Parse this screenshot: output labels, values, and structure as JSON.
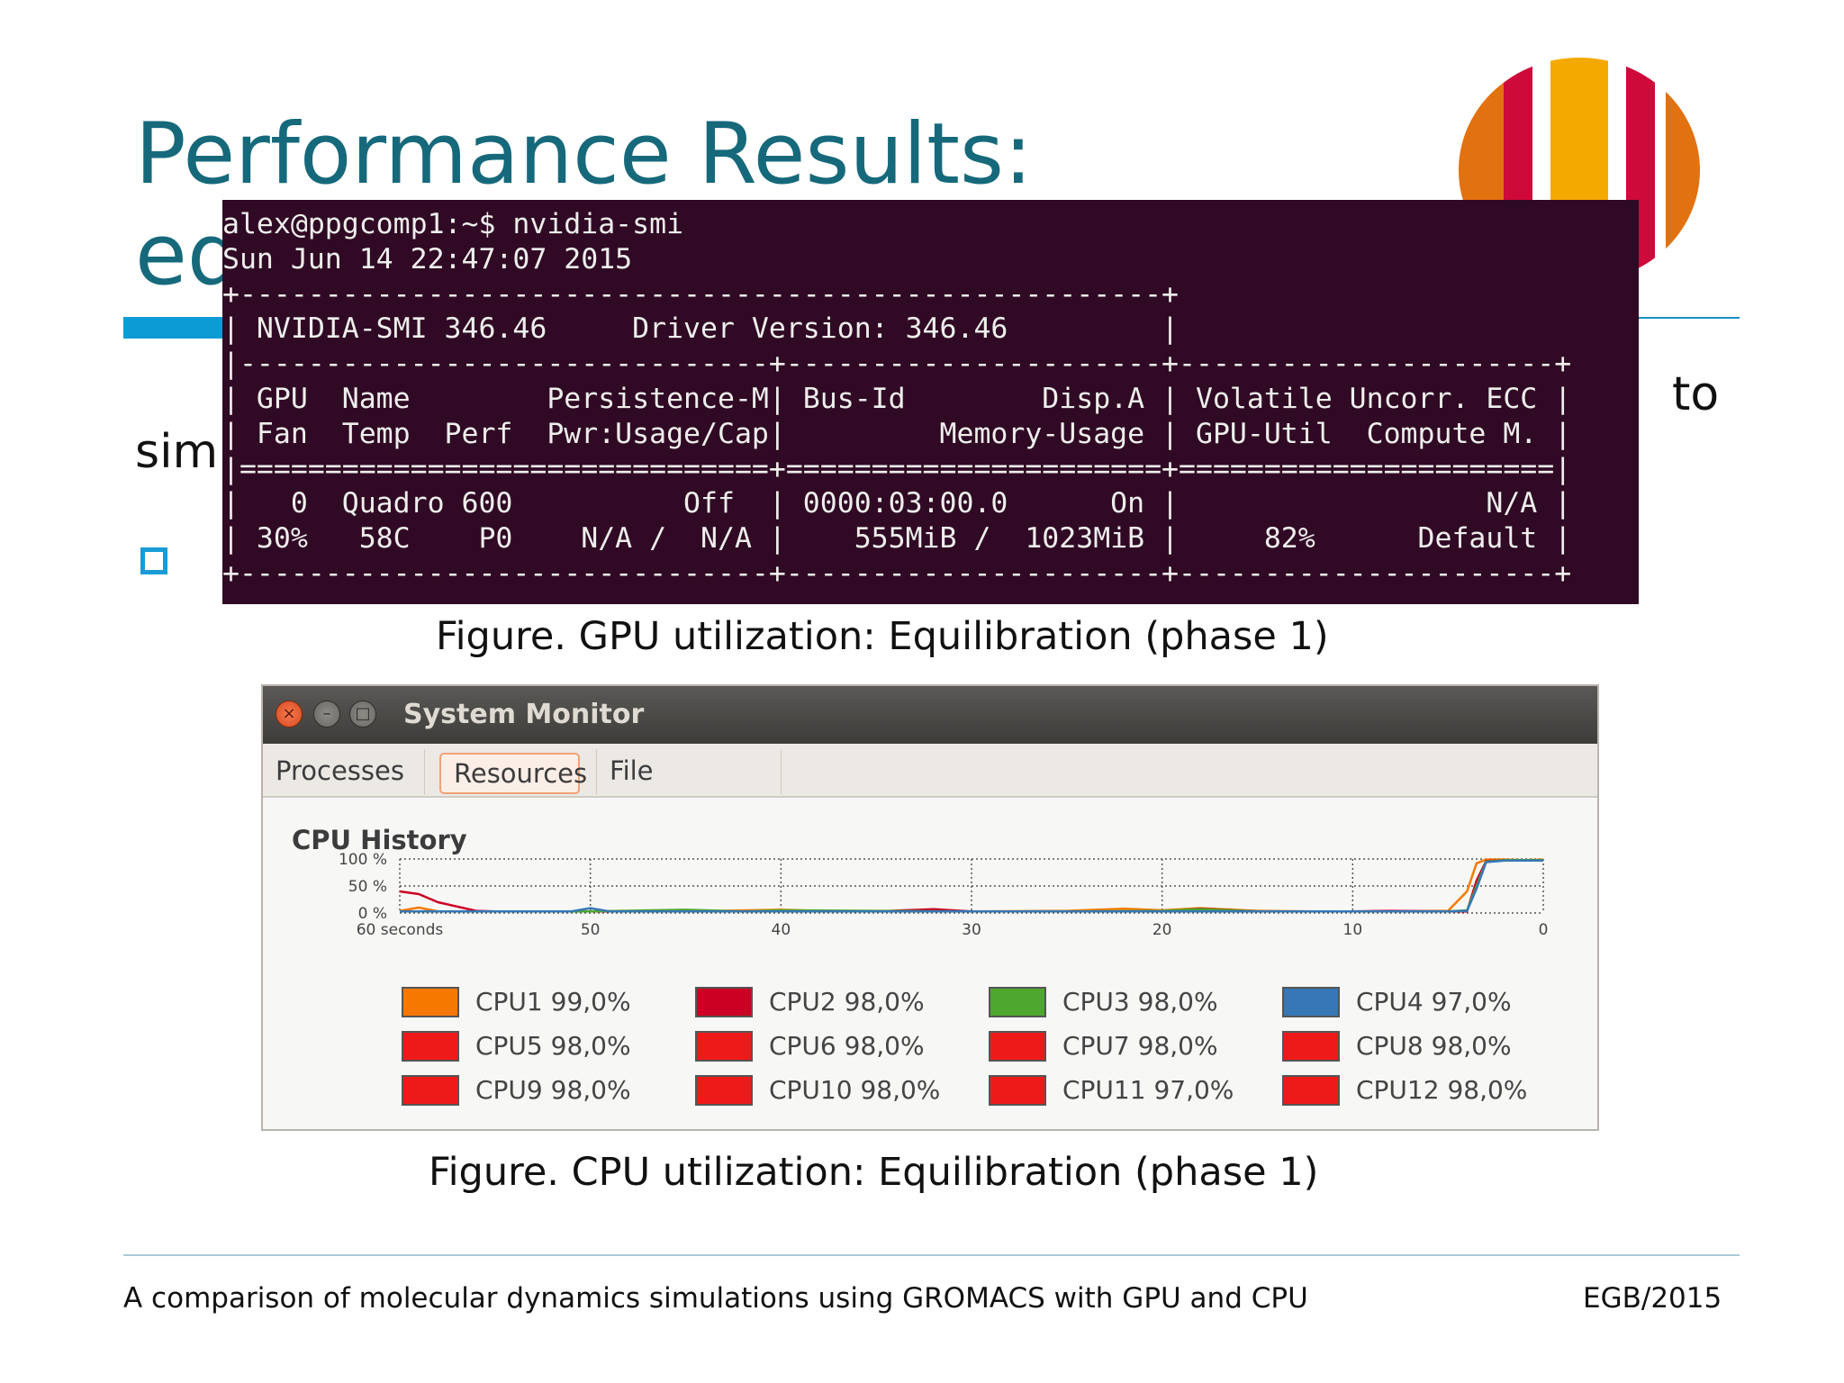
{
  "slide": {
    "title": "Performance Results:\neq",
    "body_line1_right": "n  to",
    "body_line2_left": "sim"
  },
  "terminal": {
    "lines": [
      "alex@ppgcomp1:~$ nvidia-smi",
      "Sun Jun 14 22:47:07 2015",
      "+------------------------------------------------------+",
      "| NVIDIA-SMI 346.46     Driver Version: 346.46         |",
      "|-------------------------------+----------------------+----------------------+",
      "| GPU  Name        Persistence-M| Bus-Id        Disp.A | Volatile Uncorr. ECC |",
      "| Fan  Temp  Perf  Pwr:Usage/Cap|         Memory-Usage | GPU-Util  Compute M. |",
      "|===============================+======================+======================|",
      "|   0  Quadro 600          Off  | 0000:03:00.0      On |                  N/A |",
      "| 30%   58C    P0    N/A /  N/A |    555MiB /  1023MiB |     82%      Default |",
      "+-------------------------------+----------------------+----------------------+"
    ]
  },
  "captions": {
    "gpu": "Figure. GPU utilization: Equilibration (phase 1)",
    "cpu": "Figure. CPU utilization: Equilibration (phase 1)"
  },
  "system_monitor": {
    "title": "System Monitor",
    "window_buttons": {
      "close": "×",
      "minimize": "–",
      "maximize": "□"
    },
    "tabs": [
      "Processes",
      "Resources",
      "File Systems"
    ],
    "active_tab": "Resources",
    "section_label": "CPU History",
    "legend": [
      {
        "label": "CPU1 99,0%",
        "color": "#f57900"
      },
      {
        "label": "CPU2 98,0%",
        "color": "#cc0022"
      },
      {
        "label": "CPU3 98,0%",
        "color": "#4ea72e"
      },
      {
        "label": "CPU4 97,0%",
        "color": "#3677b5"
      },
      {
        "label": "CPU5 98,0%",
        "color": "#ee1a1a"
      },
      {
        "label": "CPU6 98,0%",
        "color": "#ee1a1a"
      },
      {
        "label": "CPU7 98,0%",
        "color": "#ee1a1a"
      },
      {
        "label": "CPU8 98,0%",
        "color": "#ee1a1a"
      },
      {
        "label": "CPU9 98,0%",
        "color": "#ee1a1a"
      },
      {
        "label": "CPU10 98,0%",
        "color": "#ee1a1a"
      },
      {
        "label": "CPU11 97,0%",
        "color": "#ee1a1a"
      },
      {
        "label": "CPU12 98,0%",
        "color": "#ee1a1a"
      }
    ]
  },
  "chart_data": {
    "type": "line",
    "title": "CPU History",
    "x_unit_label": "seconds",
    "x_ticks": [
      "60 seconds",
      "50",
      "40",
      "30",
      "20",
      "10",
      "0"
    ],
    "x_tick_values": [
      60,
      50,
      40,
      30,
      20,
      10,
      0
    ],
    "y_ticks": [
      "100 %",
      "50 %",
      "0 %"
    ],
    "y_tick_values": [
      100,
      50,
      0
    ],
    "xlim": [
      60,
      0
    ],
    "ylim": [
      0,
      100
    ],
    "grid": true,
    "series": [
      {
        "name": "CPU1",
        "color": "#f57900",
        "x": [
          60,
          59,
          58,
          55,
          50,
          45,
          40,
          38,
          35,
          30,
          25,
          22,
          20,
          18,
          15,
          12,
          10,
          8,
          5,
          4,
          3.5,
          3,
          2,
          1,
          0
        ],
        "y": [
          4,
          10,
          3,
          3,
          3,
          3,
          6,
          4,
          3,
          3,
          4,
          8,
          5,
          9,
          4,
          3,
          3,
          3,
          4,
          40,
          92,
          99,
          99,
          98,
          99
        ]
      },
      {
        "name": "CPU2",
        "color": "#cc0022",
        "x": [
          60,
          59,
          58,
          56,
          55,
          50,
          45,
          40,
          35,
          32,
          30,
          25,
          20,
          18,
          15,
          10,
          8,
          5,
          4,
          3.5,
          3,
          2,
          1,
          0
        ],
        "y": [
          40,
          35,
          20,
          4,
          3,
          3,
          3,
          3,
          3,
          7,
          3,
          3,
          3,
          8,
          3,
          3,
          4,
          3,
          3,
          60,
          96,
          98,
          98,
          98
        ]
      },
      {
        "name": "CPU3",
        "color": "#4ea72e",
        "x": [
          60,
          55,
          50,
          45,
          42,
          40,
          35,
          30,
          25,
          20,
          18,
          15,
          10,
          5,
          4,
          3.5,
          3,
          2,
          1,
          0
        ],
        "y": [
          3,
          3,
          3,
          6,
          3,
          5,
          4,
          3,
          3,
          4,
          7,
          3,
          3,
          3,
          5,
          50,
          95,
          98,
          98,
          98
        ]
      },
      {
        "name": "CPU4",
        "color": "#3677b5",
        "x": [
          60,
          55,
          51,
          50,
          49,
          45,
          40,
          35,
          30,
          25,
          20,
          15,
          10,
          5,
          4,
          3.5,
          3,
          2,
          1,
          0
        ],
        "y": [
          3,
          3,
          3,
          9,
          3,
          3,
          3,
          3,
          3,
          3,
          3,
          3,
          3,
          3,
          4,
          45,
          94,
          97,
          97,
          97
        ]
      }
    ]
  },
  "footer": {
    "left": "A comparison of molecular dynamics simulations using GROMACS with GPU and CPU",
    "right": "EGB/2015"
  },
  "logo_colors": {
    "orange": "#e2710f",
    "red": "#cd0a3a",
    "yellow": "#f4a900"
  }
}
